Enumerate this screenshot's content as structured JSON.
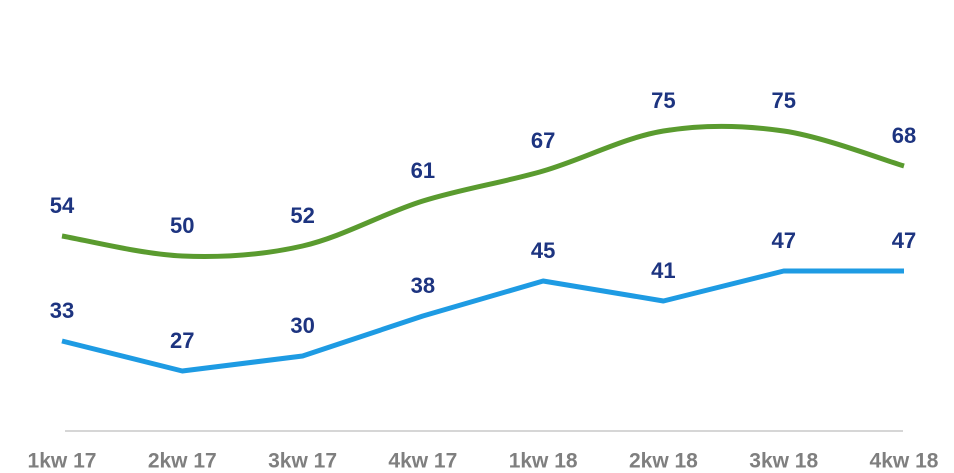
{
  "chart_data": {
    "type": "line",
    "categories": [
      "1kw 17",
      "2kw 17",
      "3kw 17",
      "4kw 17",
      "1kw 18",
      "2kw 18",
      "3kw 18",
      "4kw 18"
    ],
    "series": [
      {
        "color": "#5a9b2f",
        "smooth": true,
        "values": [
          54,
          50,
          52,
          61,
          67,
          75,
          75,
          68
        ]
      },
      {
        "color": "#1e9be3",
        "smooth": false,
        "values": [
          33,
          27,
          30,
          38,
          45,
          41,
          47,
          47
        ]
      }
    ],
    "ylim": [
      15,
      80
    ]
  }
}
